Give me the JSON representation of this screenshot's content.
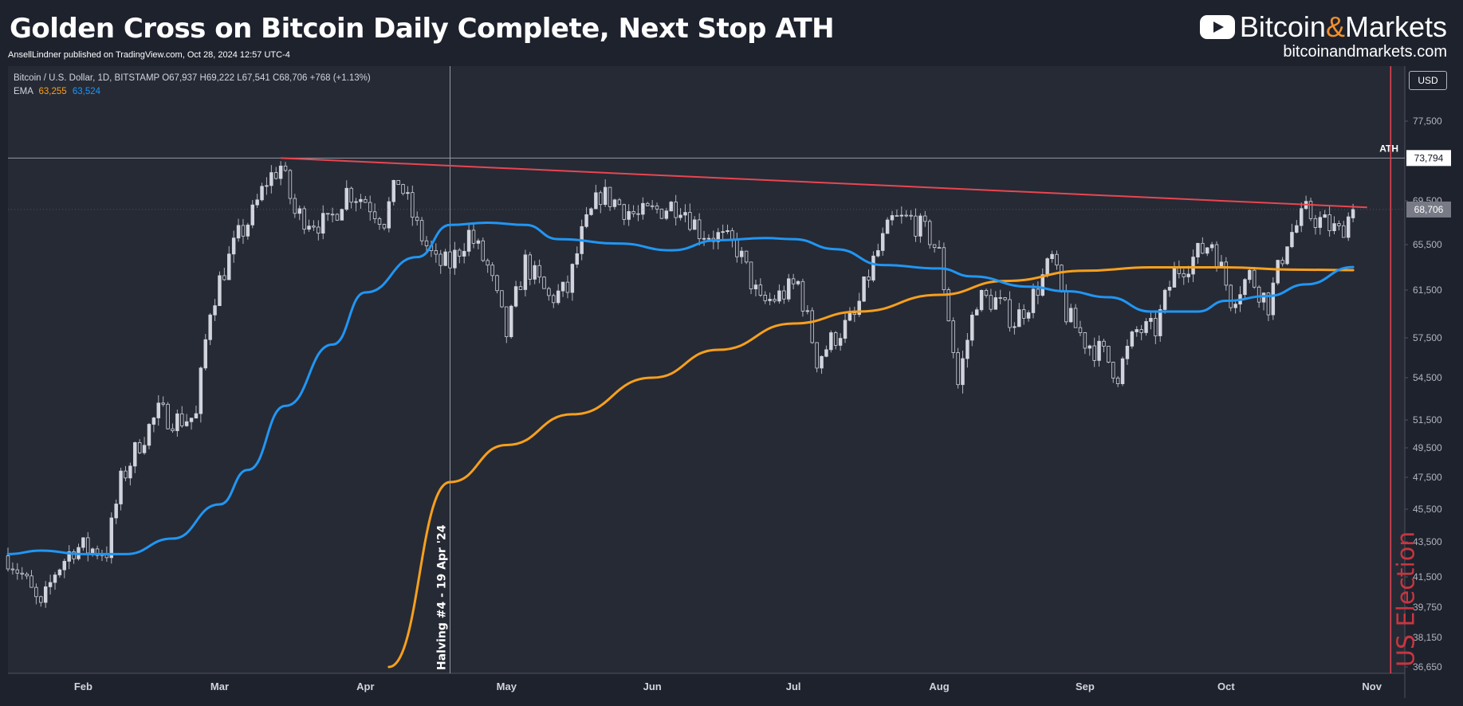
{
  "header": {
    "title": "Golden Cross on Bitcoin Daily Complete, Next Stop ATH",
    "publisher_line": "AnsellLindner published on TradingView.com, Oct 28, 2024 12:57 UTC-4"
  },
  "brand": {
    "icon": "play-icon",
    "name_part1": "Bitcoin",
    "name_amp": "&",
    "name_part2": "Markets",
    "url": "bitcoinandmarkets.com"
  },
  "legend": {
    "symbol": "Bitcoin / U.S. Dollar, 1D, BITSTAMP",
    "ohlc": "O67,937 H69,222 L67,541 C68,706 +768 (+1.13%)",
    "ema_label": "EMA",
    "ema_200_value": "63,255",
    "ema_50_value": "63,524"
  },
  "axis": {
    "currency": "USD"
  },
  "chart_data": {
    "type": "candlestick",
    "y_ticks": [
      77500,
      69500,
      65500,
      61500,
      57500,
      54500,
      51500,
      49500,
      47500,
      45500,
      43500,
      41500,
      39750,
      38150,
      36650
    ],
    "y_tick_labels": [
      "77,500",
      "69,500",
      "65,500",
      "61,500",
      "57,500",
      "54,500",
      "51,500",
      "49,500",
      "47,500",
      "45,500",
      "43,500",
      "41,500",
      "39,750",
      "38,150",
      "36,650"
    ],
    "x_labels": [
      "Feb",
      "Mar",
      "Apr",
      "May",
      "Jun",
      "Jul",
      "Aug",
      "Sep",
      "Oct",
      "Nov"
    ],
    "x_label_dates": [
      "2024-02-01",
      "2024-03-01",
      "2024-04-01",
      "2024-05-01",
      "2024-06-01",
      "2024-07-01",
      "2024-08-01",
      "2024-09-01",
      "2024-10-01",
      "2024-11-01"
    ],
    "x_range": [
      "2024-01-16",
      "2024-11-08"
    ],
    "ath_line": {
      "value": 73794,
      "label": "73,794",
      "text": "ATH"
    },
    "last_price": {
      "value": 68706,
      "label": "68,706"
    },
    "halving_line": {
      "date": "2024-04-19",
      "label": "Halving #4 - 19 Apr '24"
    },
    "election_line": {
      "date": "2024-11-05",
      "label": "US Election"
    },
    "trendline": {
      "from": {
        "date": "2024-03-14",
        "value": 73794
      },
      "to": {
        "date": "2024-10-31",
        "value": 68900
      },
      "color": "#e94650"
    },
    "ema_200": {
      "color": "#f7a01d",
      "points": [
        [
          "2024-04-06",
          36650
        ],
        [
          "2024-04-19",
          47200
        ],
        [
          "2024-05-01",
          49700
        ],
        [
          "2024-05-15",
          51900
        ],
        [
          "2024-06-01",
          54500
        ],
        [
          "2024-06-15",
          56600
        ],
        [
          "2024-07-01",
          58700
        ],
        [
          "2024-07-15",
          59700
        ],
        [
          "2024-08-01",
          61100
        ],
        [
          "2024-08-15",
          62300
        ],
        [
          "2024-09-01",
          63200
        ],
        [
          "2024-09-15",
          63500
        ],
        [
          "2024-10-01",
          63500
        ],
        [
          "2024-10-15",
          63300
        ],
        [
          "2024-10-28",
          63255
        ]
      ]
    },
    "ema_50": {
      "color": "#2196f3",
      "points": [
        [
          "2024-01-16",
          42800
        ],
        [
          "2024-01-23",
          43000
        ],
        [
          "2024-02-01",
          42800
        ],
        [
          "2024-02-10",
          42800
        ],
        [
          "2024-02-20",
          43700
        ],
        [
          "2024-03-01",
          45800
        ],
        [
          "2024-03-07",
          48000
        ],
        [
          "2024-03-15",
          52500
        ],
        [
          "2024-03-25",
          57000
        ],
        [
          "2024-04-01",
          61300
        ],
        [
          "2024-04-12",
          64400
        ],
        [
          "2024-04-19",
          67300
        ],
        [
          "2024-04-27",
          67500
        ],
        [
          "2024-05-05",
          67300
        ],
        [
          "2024-05-12",
          66000
        ],
        [
          "2024-05-25",
          65600
        ],
        [
          "2024-06-05",
          65000
        ],
        [
          "2024-06-15",
          65900
        ],
        [
          "2024-06-25",
          66100
        ],
        [
          "2024-07-01",
          66000
        ],
        [
          "2024-07-10",
          65100
        ],
        [
          "2024-07-20",
          63700
        ],
        [
          "2024-08-01",
          63400
        ],
        [
          "2024-08-08",
          62700
        ],
        [
          "2024-08-20",
          61800
        ],
        [
          "2024-08-28",
          61400
        ],
        [
          "2024-09-06",
          60900
        ],
        [
          "2024-09-15",
          59700
        ],
        [
          "2024-09-25",
          59700
        ],
        [
          "2024-10-01",
          60600
        ],
        [
          "2024-10-10",
          61000
        ],
        [
          "2024-10-18",
          62000
        ],
        [
          "2024-10-28",
          63524
        ]
      ]
    },
    "price_path": [
      [
        "2024-01-16",
        42700
      ],
      [
        "2024-01-19",
        41600
      ],
      [
        "2024-01-23",
        39600
      ],
      [
        "2024-01-26",
        41800
      ],
      [
        "2024-01-30",
        43200
      ],
      [
        "2024-02-02",
        43100
      ],
      [
        "2024-02-06",
        43000
      ],
      [
        "2024-02-09",
        47200
      ],
      [
        "2024-02-13",
        49900
      ],
      [
        "2024-02-17",
        52000
      ],
      [
        "2024-02-21",
        51500
      ],
      [
        "2024-02-25",
        51700
      ],
      [
        "2024-02-28",
        60000
      ],
      [
        "2024-03-01",
        62300
      ],
      [
        "2024-03-05",
        66200
      ],
      [
        "2024-03-08",
        68200
      ],
      [
        "2024-03-11",
        71500
      ],
      [
        "2024-03-14",
        73000
      ],
      [
        "2024-03-17",
        68300
      ],
      [
        "2024-03-20",
        67900
      ],
      [
        "2024-03-24",
        67200
      ],
      [
        "2024-03-28",
        70500
      ],
      [
        "2024-04-01",
        69600
      ],
      [
        "2024-04-05",
        67800
      ],
      [
        "2024-04-08",
        71600
      ],
      [
        "2024-04-12",
        67000
      ],
      [
        "2024-04-16",
        63800
      ],
      [
        "2024-04-19",
        63800
      ],
      [
        "2024-04-23",
        66500
      ],
      [
        "2024-04-27",
        63500
      ],
      [
        "2024-05-01",
        57800
      ],
      [
        "2024-05-05",
        63900
      ],
      [
        "2024-05-10",
        60800
      ],
      [
        "2024-05-14",
        61500
      ],
      [
        "2024-05-17",
        66300
      ],
      [
        "2024-05-21",
        70200
      ],
      [
        "2024-05-25",
        69200
      ],
      [
        "2024-05-29",
        68000
      ],
      [
        "2024-06-03",
        68800
      ],
      [
        "2024-06-07",
        69300
      ],
      [
        "2024-06-11",
        66800
      ],
      [
        "2024-06-15",
        66200
      ],
      [
        "2024-06-19",
        65200
      ],
      [
        "2024-06-24",
        60300
      ],
      [
        "2024-06-28",
        61000
      ],
      [
        "2024-07-02",
        62100
      ],
      [
        "2024-07-06",
        55900
      ],
      [
        "2024-07-10",
        57700
      ],
      [
        "2024-07-14",
        59200
      ],
      [
        "2024-07-18",
        64000
      ],
      [
        "2024-07-22",
        67600
      ],
      [
        "2024-07-26",
        67800
      ],
      [
        "2024-07-30",
        66200
      ],
      [
        "2024-08-01",
        64600
      ],
      [
        "2024-08-05",
        54000
      ],
      [
        "2024-08-09",
        60800
      ],
      [
        "2024-08-13",
        60600
      ],
      [
        "2024-08-17",
        58900
      ],
      [
        "2024-08-21",
        61000
      ],
      [
        "2024-08-25",
        64200
      ],
      [
        "2024-08-28",
        59500
      ],
      [
        "2024-09-01",
        57300
      ],
      [
        "2024-09-05",
        56200
      ],
      [
        "2024-09-08",
        54800
      ],
      [
        "2024-09-12",
        58100
      ],
      [
        "2024-09-16",
        58200
      ],
      [
        "2024-09-20",
        63100
      ],
      [
        "2024-09-24",
        64300
      ],
      [
        "2024-09-28",
        65800
      ],
      [
        "2024-10-02",
        60800
      ],
      [
        "2024-10-06",
        62800
      ],
      [
        "2024-10-10",
        60300
      ],
      [
        "2024-10-14",
        66000
      ],
      [
        "2024-10-18",
        68400
      ],
      [
        "2024-10-22",
        67400
      ],
      [
        "2024-10-25",
        66600
      ],
      [
        "2024-10-28",
        68706
      ]
    ],
    "candle_interval_days": 1,
    "colors": {
      "up": "#d1d4dc",
      "down": "#d1d4dc",
      "grid": "#2a2e39"
    }
  }
}
